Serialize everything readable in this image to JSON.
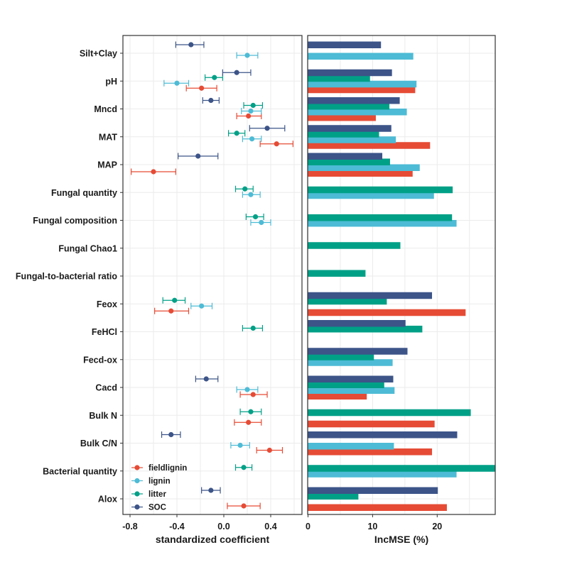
{
  "chart_data": [
    {
      "type": "scatter",
      "subtype": "point-errorbar",
      "xlabel": "standardized coefficient",
      "xlim": [
        -0.86,
        0.67
      ],
      "xticks": [
        "-0.8",
        "-0.4",
        "0.0",
        "0.4"
      ],
      "xtick_values": [
        -0.8,
        -0.4,
        0.0,
        0.4
      ],
      "grid": true,
      "legend_position": "bottom-left",
      "categories": [
        "Silt+Clay",
        "pH",
        "Mncd",
        "MAT",
        "MAP",
        "Fungal quantity",
        "Fungal composition",
        "Fungal Chao1",
        "Fungal-to-bacterial ratio",
        "Feox",
        "FeHCl",
        "Fecd-ox",
        "Cacd",
        "Bulk N",
        "Bulk C/N",
        "Bacterial quantity",
        "Alox"
      ],
      "series": [
        {
          "name": "fieldlignin",
          "color": "#e64b35",
          "points": [
            {
              "category": "pH",
              "value": -0.19,
              "lo": -0.32,
              "hi": -0.06
            },
            {
              "category": "Mncd",
              "value": 0.21,
              "lo": 0.11,
              "hi": 0.32
            },
            {
              "category": "MAT",
              "value": 0.45,
              "lo": 0.31,
              "hi": 0.59
            },
            {
              "category": "MAP",
              "value": -0.6,
              "lo": -0.79,
              "hi": -0.41
            },
            {
              "category": "Feox",
              "value": -0.45,
              "lo": -0.59,
              "hi": -0.3
            },
            {
              "category": "Cacd",
              "value": 0.25,
              "lo": 0.14,
              "hi": 0.37
            },
            {
              "category": "Bulk N",
              "value": 0.21,
              "lo": 0.09,
              "hi": 0.32
            },
            {
              "category": "Bulk C/N",
              "value": 0.39,
              "lo": 0.28,
              "hi": 0.5
            },
            {
              "category": "Alox",
              "value": 0.17,
              "lo": 0.03,
              "hi": 0.31
            }
          ]
        },
        {
          "name": "lignin",
          "color": "#4dbbd5",
          "points": [
            {
              "category": "Silt+Clay",
              "value": 0.2,
              "lo": 0.11,
              "hi": 0.29
            },
            {
              "category": "pH",
              "value": -0.4,
              "lo": -0.51,
              "hi": -0.3
            },
            {
              "category": "Mncd",
              "value": 0.23,
              "lo": 0.15,
              "hi": 0.32
            },
            {
              "category": "MAT",
              "value": 0.24,
              "lo": 0.16,
              "hi": 0.32
            },
            {
              "category": "Fungal quantity",
              "value": 0.23,
              "lo": 0.16,
              "hi": 0.31
            },
            {
              "category": "Fungal composition",
              "value": 0.32,
              "lo": 0.23,
              "hi": 0.4
            },
            {
              "category": "Feox",
              "value": -0.19,
              "lo": -0.28,
              "hi": -0.1
            },
            {
              "category": "Cacd",
              "value": 0.2,
              "lo": 0.11,
              "hi": 0.29
            },
            {
              "category": "Bulk C/N",
              "value": 0.14,
              "lo": 0.06,
              "hi": 0.22
            }
          ]
        },
        {
          "name": "litter",
          "color": "#00a087",
          "points": [
            {
              "category": "pH",
              "value": -0.08,
              "lo": -0.16,
              "hi": -0.01
            },
            {
              "category": "Mncd",
              "value": 0.25,
              "lo": 0.17,
              "hi": 0.33
            },
            {
              "category": "MAT",
              "value": 0.11,
              "lo": 0.04,
              "hi": 0.18
            },
            {
              "category": "Fungal quantity",
              "value": 0.18,
              "lo": 0.1,
              "hi": 0.25
            },
            {
              "category": "Fungal composition",
              "value": 0.27,
              "lo": 0.19,
              "hi": 0.34
            },
            {
              "category": "Feox",
              "value": -0.42,
              "lo": -0.52,
              "hi": -0.33
            },
            {
              "category": "FeHCl",
              "value": 0.25,
              "lo": 0.16,
              "hi": 0.33
            },
            {
              "category": "Bulk N",
              "value": 0.23,
              "lo": 0.14,
              "hi": 0.32
            },
            {
              "category": "Bacterial quantity",
              "value": 0.17,
              "lo": 0.1,
              "hi": 0.24
            }
          ]
        },
        {
          "name": "SOC",
          "color": "#3c5488",
          "points": [
            {
              "category": "Silt+Clay",
              "value": -0.28,
              "lo": -0.41,
              "hi": -0.17
            },
            {
              "category": "pH",
              "value": 0.11,
              "lo": -0.01,
              "hi": 0.23
            },
            {
              "category": "Mncd",
              "value": -0.11,
              "lo": -0.18,
              "hi": -0.04
            },
            {
              "category": "MAT",
              "value": 0.37,
              "lo": 0.22,
              "hi": 0.52
            },
            {
              "category": "MAP",
              "value": -0.22,
              "lo": -0.39,
              "hi": -0.05
            },
            {
              "category": "Cacd",
              "value": -0.15,
              "lo": -0.24,
              "hi": -0.05
            },
            {
              "category": "Bulk C/N",
              "value": -0.45,
              "lo": -0.53,
              "hi": -0.37
            },
            {
              "category": "Alox",
              "value": -0.11,
              "lo": -0.19,
              "hi": -0.03
            }
          ]
        }
      ]
    },
    {
      "type": "bar",
      "orientation": "horizontal",
      "xlabel": "IncMSE (%)",
      "xlim": [
        0,
        29
      ],
      "xticks": [
        "0",
        "10",
        "20"
      ],
      "xtick_values": [
        0,
        10,
        20
      ],
      "grid": true,
      "series": [
        {
          "name": "fieldlignin",
          "color": "#e64b35",
          "values": {
            "pH": 16.6,
            "Mncd": 10.5,
            "MAT": 18.9,
            "MAP": 16.2,
            "Feox": 24.4,
            "Cacd": 9.1,
            "Bulk N": 19.6,
            "Bulk C/N": 19.2,
            "Alox": 21.5
          }
        },
        {
          "name": "lignin",
          "color": "#4dbbd5",
          "values": {
            "Silt+Clay": 16.3,
            "pH": 16.8,
            "Mncd": 15.3,
            "MAT": 13.6,
            "MAP": 17.3,
            "Fungal quantity": 19.5,
            "Fungal composition": 23.0,
            "Fecd-ox": 13.1,
            "Cacd": 13.4,
            "Bulk C/N": 13.3,
            "Bacterial quantity": 23.0
          }
        },
        {
          "name": "litter",
          "color": "#00a087",
          "values": {
            "pH": 9.6,
            "Mncd": 12.6,
            "MAT": 11.0,
            "MAP": 12.7,
            "Fungal quantity": 22.4,
            "Fungal composition": 22.3,
            "Fungal Chao1": 14.3,
            "Fungal-to-bacterial ratio": 8.9,
            "Feox": 12.2,
            "FeHCl": 17.7,
            "Fecd-ox": 10.2,
            "Cacd": 11.8,
            "Bulk N": 25.2,
            "Bacterial quantity": 29.0,
            "Alox": 7.8
          }
        },
        {
          "name": "SOC",
          "color": "#3c5488",
          "values": {
            "Silt+Clay": 11.3,
            "pH": 13.0,
            "Mncd": 14.2,
            "MAT": 12.9,
            "MAP": 11.5,
            "Feox": 19.2,
            "FeHCl": 15.1,
            "Fecd-ox": 15.4,
            "Cacd": 13.2,
            "Bulk C/N": 23.1,
            "Alox": 20.1
          }
        }
      ]
    }
  ]
}
